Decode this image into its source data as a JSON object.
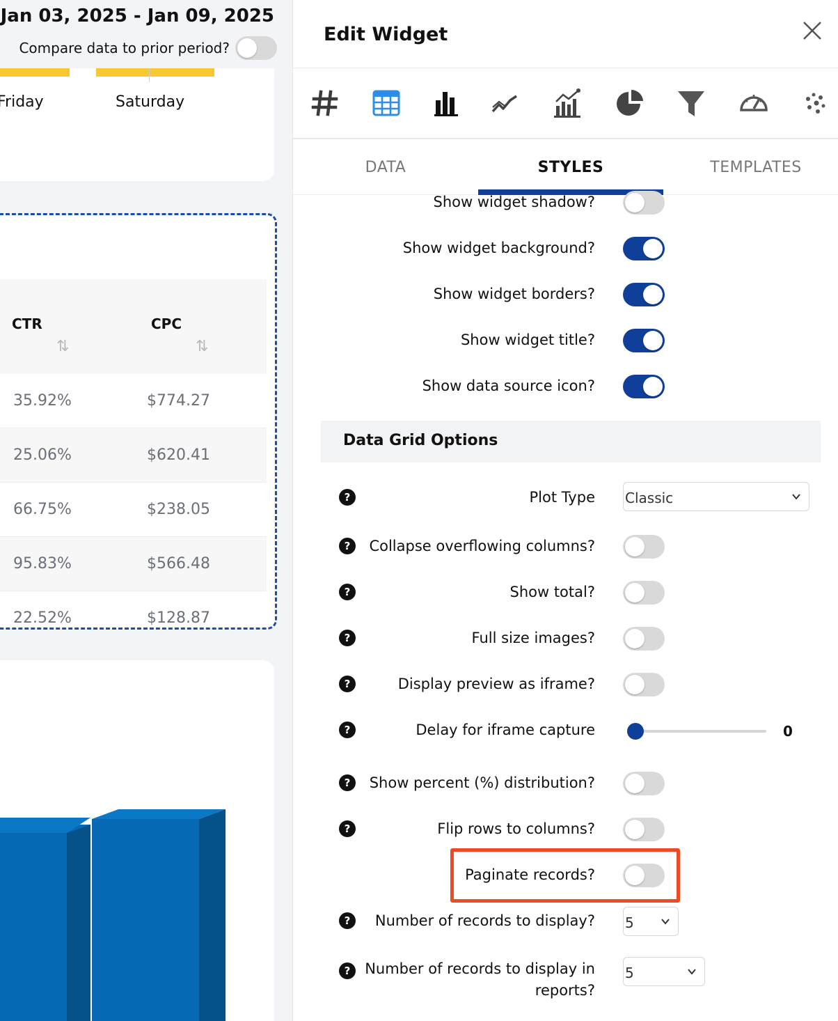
{
  "dashboard": {
    "date_range": "Jan 03, 2025 - Jan 09, 2025",
    "compare_label": "Compare data to prior period?",
    "compare_enabled": false,
    "days": [
      "Friday",
      "Saturday"
    ],
    "table": {
      "columns": [
        "CTR",
        "CPC"
      ],
      "rows": [
        [
          "35.92%",
          "$774.27"
        ],
        [
          "25.06%",
          "$620.41"
        ],
        [
          "66.75%",
          "$238.05"
        ],
        [
          "95.83%",
          "$566.48"
        ],
        [
          "22.52%",
          "$128.87"
        ]
      ]
    }
  },
  "panel": {
    "title": "Edit Widget",
    "chart_type_icons": [
      "number-icon",
      "table-icon",
      "bar-chart-icon",
      "line-chart-icon",
      "combo-chart-icon",
      "pie-chart-icon",
      "funnel-icon",
      "gauge-icon",
      "scatter-icon"
    ],
    "active_chart_type": "table-icon",
    "tabs": [
      "DATA",
      "STYLES",
      "TEMPLATES"
    ],
    "active_tab": "STYLES",
    "style_toggles": [
      {
        "label": "Show widget shadow?",
        "on": false
      },
      {
        "label": "Show widget background?",
        "on": true
      },
      {
        "label": "Show widget borders?",
        "on": true
      },
      {
        "label": "Show widget title?",
        "on": true
      },
      {
        "label": "Show data source icon?",
        "on": true
      }
    ],
    "section_title": "Data Grid Options",
    "plot_type": {
      "label": "Plot Type",
      "value": "Classic"
    },
    "grid_toggles": [
      {
        "label": "Collapse overflowing columns?",
        "on": false
      },
      {
        "label": "Show total?",
        "on": false
      },
      {
        "label": "Full size images?",
        "on": false
      },
      {
        "label": "Display preview as iframe?",
        "on": false
      }
    ],
    "delay": {
      "label": "Delay for iframe capture",
      "value": "0"
    },
    "grid_toggles_2": [
      {
        "label": "Show percent (%) distribution?",
        "on": false
      },
      {
        "label": "Flip rows to columns?",
        "on": false
      },
      {
        "label": "Paginate records?",
        "on": false
      }
    ],
    "records": {
      "label": "Number of records to display?",
      "value": "5"
    },
    "records_reports": {
      "label": "Number of records to display in reports?",
      "value": "5"
    },
    "help_glyph": "?",
    "colors": {
      "accent": "#0f3f99",
      "highlight": "#ee4b25",
      "chart_blue": "#0569b4"
    }
  }
}
